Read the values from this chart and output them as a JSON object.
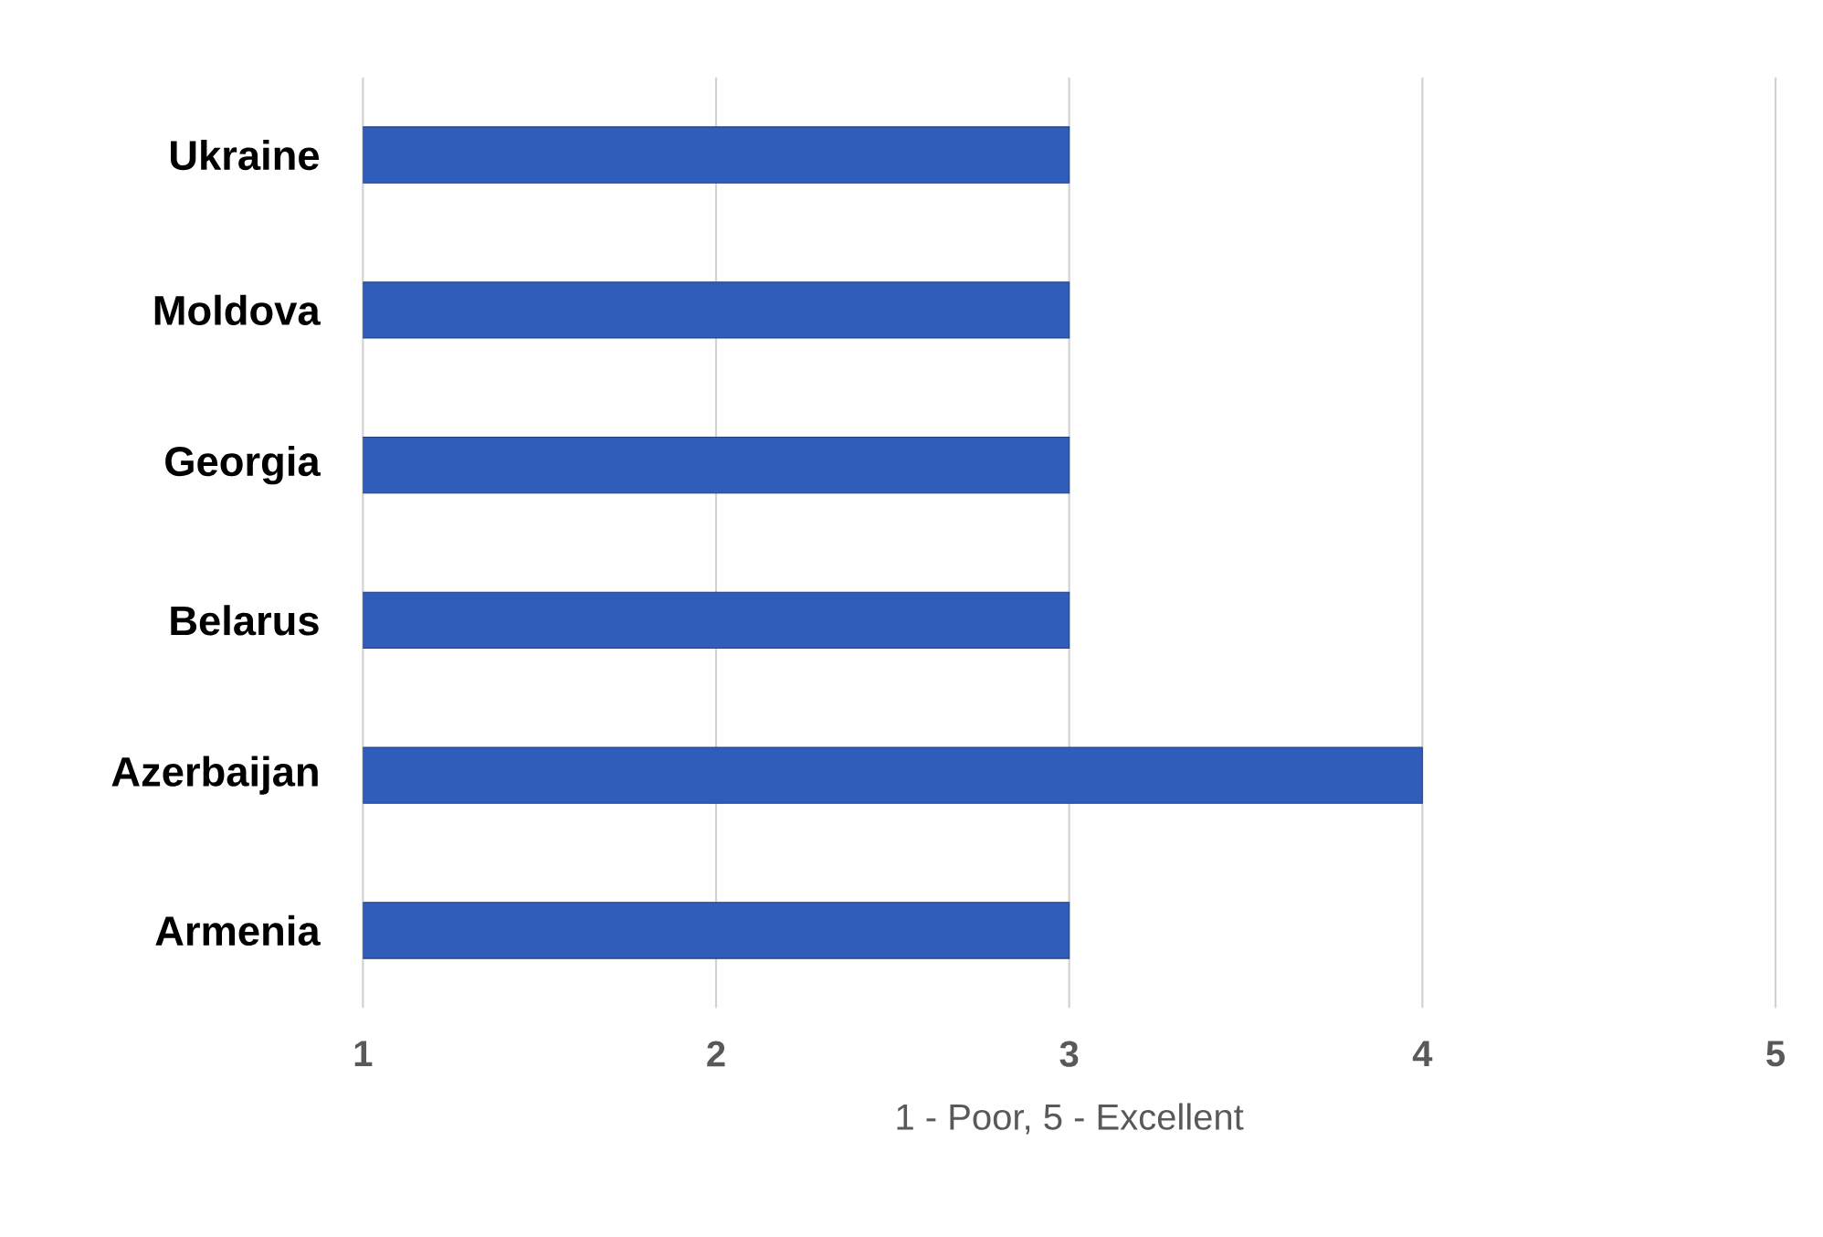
{
  "chart_data": {
    "type": "bar",
    "orientation": "horizontal",
    "categories": [
      "Ukraine",
      "Moldova",
      "Georgia",
      "Belarus",
      "Azerbaijan",
      "Armenia"
    ],
    "values": [
      3,
      3,
      3,
      3,
      4,
      3
    ],
    "color": "#2f5db9",
    "xlim": [
      1,
      5
    ],
    "xticks": [
      1,
      2,
      3,
      4,
      5
    ],
    "grid": "x",
    "xlabel": "1 - Poor,  5 - Excellent"
  }
}
